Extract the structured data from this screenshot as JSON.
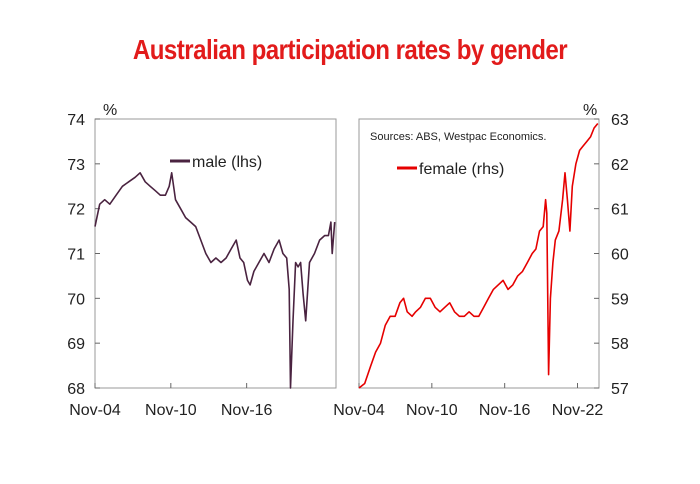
{
  "title": "Australian participation rates by gender",
  "chart_data": [
    {
      "type": "line",
      "series": [
        {
          "name": "male (lhs)",
          "color": "#4a2340",
          "points": [
            [
              2004.83,
              71.6
            ],
            [
              2005.2,
              72.1
            ],
            [
              2005.6,
              72.2
            ],
            [
              2006.0,
              72.1
            ],
            [
              2006.5,
              72.3
            ],
            [
              2007.0,
              72.5
            ],
            [
              2007.5,
              72.6
            ],
            [
              2008.0,
              72.7
            ],
            [
              2008.4,
              72.8
            ],
            [
              2008.8,
              72.6
            ],
            [
              2009.2,
              72.5
            ],
            [
              2009.6,
              72.4
            ],
            [
              2010.0,
              72.3
            ],
            [
              2010.4,
              72.3
            ],
            [
              2010.7,
              72.5
            ],
            [
              2010.9,
              72.8
            ],
            [
              2011.2,
              72.2
            ],
            [
              2011.6,
              72.0
            ],
            [
              2012.0,
              71.8
            ],
            [
              2012.4,
              71.7
            ],
            [
              2012.8,
              71.6
            ],
            [
              2013.2,
              71.3
            ],
            [
              2013.6,
              71.0
            ],
            [
              2014.0,
              70.8
            ],
            [
              2014.4,
              70.9
            ],
            [
              2014.8,
              70.8
            ],
            [
              2015.2,
              70.9
            ],
            [
              2015.6,
              71.1
            ],
            [
              2016.0,
              71.3
            ],
            [
              2016.3,
              70.9
            ],
            [
              2016.6,
              70.8
            ],
            [
              2016.9,
              70.4
            ],
            [
              2017.1,
              70.3
            ],
            [
              2017.4,
              70.6
            ],
            [
              2017.8,
              70.8
            ],
            [
              2018.2,
              71.0
            ],
            [
              2018.6,
              70.8
            ],
            [
              2019.0,
              71.1
            ],
            [
              2019.4,
              71.3
            ],
            [
              2019.7,
              71.0
            ],
            [
              2020.0,
              70.9
            ],
            [
              2020.2,
              70.2
            ],
            [
              2020.3,
              68.0
            ],
            [
              2020.5,
              69.5
            ],
            [
              2020.7,
              70.8
            ],
            [
              2020.9,
              70.7
            ],
            [
              2021.1,
              70.8
            ],
            [
              2021.3,
              70.1
            ],
            [
              2021.5,
              69.5
            ],
            [
              2021.8,
              70.8
            ],
            [
              2022.2,
              71.0
            ],
            [
              2022.6,
              71.3
            ],
            [
              2023.0,
              71.4
            ],
            [
              2023.3,
              71.4
            ],
            [
              2023.5,
              71.7
            ],
            [
              2023.6,
              71.0
            ],
            [
              2023.8,
              71.7
            ]
          ]
        }
      ],
      "xticks": [
        "Nov-04",
        "Nov-10",
        "Nov-16"
      ],
      "xtick_values": [
        2004.83,
        2010.83,
        2016.83
      ],
      "xlim": [
        2004.83,
        2023.9
      ],
      "yticks": [
        "74",
        "73",
        "72",
        "71",
        "70",
        "69",
        "68"
      ],
      "ylim": [
        68,
        74
      ],
      "ylabel": "%",
      "grid": false,
      "legend": "top-center"
    },
    {
      "type": "line",
      "series": [
        {
          "name": "female (rhs)",
          "color": "#e60000",
          "points": [
            [
              2004.83,
              57.0
            ],
            [
              2005.3,
              57.1
            ],
            [
              2005.8,
              57.5
            ],
            [
              2006.2,
              57.8
            ],
            [
              2006.6,
              58.0
            ],
            [
              2007.0,
              58.4
            ],
            [
              2007.4,
              58.6
            ],
            [
              2007.8,
              58.6
            ],
            [
              2008.2,
              58.9
            ],
            [
              2008.5,
              59.0
            ],
            [
              2008.8,
              58.7
            ],
            [
              2009.2,
              58.6
            ],
            [
              2009.5,
              58.7
            ],
            [
              2009.9,
              58.8
            ],
            [
              2010.3,
              59.0
            ],
            [
              2010.7,
              59.0
            ],
            [
              2011.1,
              58.8
            ],
            [
              2011.5,
              58.7
            ],
            [
              2011.9,
              58.8
            ],
            [
              2012.3,
              58.9
            ],
            [
              2012.7,
              58.7
            ],
            [
              2013.1,
              58.6
            ],
            [
              2013.5,
              58.6
            ],
            [
              2013.9,
              58.7
            ],
            [
              2014.3,
              58.6
            ],
            [
              2014.7,
              58.6
            ],
            [
              2015.1,
              58.8
            ],
            [
              2015.5,
              59.0
            ],
            [
              2015.9,
              59.2
            ],
            [
              2016.3,
              59.3
            ],
            [
              2016.7,
              59.4
            ],
            [
              2017.1,
              59.2
            ],
            [
              2017.5,
              59.3
            ],
            [
              2017.9,
              59.5
            ],
            [
              2018.3,
              59.6
            ],
            [
              2018.7,
              59.8
            ],
            [
              2019.1,
              60.0
            ],
            [
              2019.4,
              60.1
            ],
            [
              2019.7,
              60.5
            ],
            [
              2020.0,
              60.6
            ],
            [
              2020.2,
              61.2
            ],
            [
              2020.3,
              60.9
            ],
            [
              2020.45,
              57.3
            ],
            [
              2020.6,
              59.0
            ],
            [
              2020.8,
              59.8
            ],
            [
              2021.0,
              60.3
            ],
            [
              2021.3,
              60.5
            ],
            [
              2021.6,
              61.2
            ],
            [
              2021.8,
              61.8
            ],
            [
              2022.0,
              61.2
            ],
            [
              2022.2,
              60.5
            ],
            [
              2022.4,
              61.5
            ],
            [
              2022.7,
              62.0
            ],
            [
              2023.0,
              62.3
            ],
            [
              2023.3,
              62.4
            ],
            [
              2023.6,
              62.5
            ],
            [
              2023.9,
              62.6
            ],
            [
              2024.2,
              62.8
            ],
            [
              2024.5,
              62.9
            ]
          ]
        }
      ],
      "xticks": [
        "Nov-04",
        "Nov-10",
        "Nov-16",
        "Nov-22"
      ],
      "xtick_values": [
        2004.83,
        2010.83,
        2016.83,
        2022.83
      ],
      "xlim": [
        2004.83,
        2024.6
      ],
      "yticks": [
        "63",
        "62",
        "61",
        "60",
        "59",
        "58",
        "57"
      ],
      "ylim": [
        57,
        63
      ],
      "ylabel": "%",
      "annotation": "Sources: ABS, Westpac Economics.",
      "grid": false,
      "legend": "top-left"
    }
  ]
}
